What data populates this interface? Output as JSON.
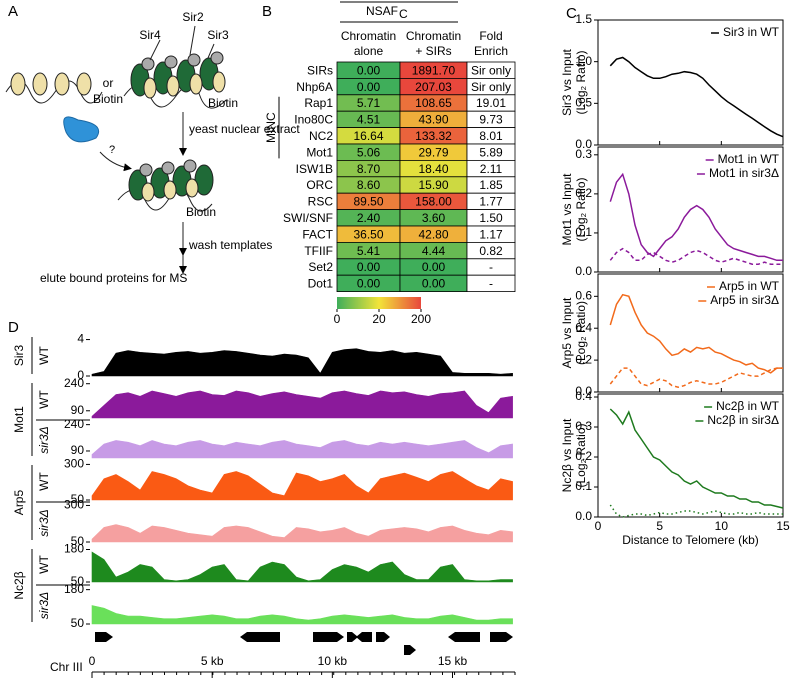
{
  "panel_labels": [
    "A",
    "B",
    "C",
    "D"
  ],
  "diagram": {
    "sir4": "Sir4",
    "sir2": "Sir2",
    "sir3": "Sir3",
    "or": "or",
    "biotin_left": "Biotin",
    "biotin_right": "Biotin",
    "step1": "yeast nuclear extract",
    "question": "?",
    "biotin_bound": "Biotin",
    "step2": "wash templates",
    "step3": "elute bound proteins for MS"
  },
  "table": {
    "header": "NSAF",
    "header_sub": "C",
    "columns": [
      [
        "Chromatin",
        "alone"
      ],
      [
        "Chromatin",
        "+ SIRs"
      ],
      [
        "Fold",
        "Enrich"
      ]
    ],
    "group_label": "MINC",
    "rows": [
      [
        "SIRs",
        "0.00",
        "1891.70",
        "Sir only"
      ],
      [
        "Nhp6A",
        "0.00",
        "207.03",
        "Sir only"
      ],
      [
        "Rap1",
        "5.71",
        "108.65",
        "19.01"
      ],
      [
        "Ino80C",
        "4.51",
        "43.90",
        "9.73"
      ],
      [
        "NC2",
        "16.64",
        "133.32",
        "8.01"
      ],
      [
        "Mot1",
        "5.06",
        "29.79",
        "5.89"
      ],
      [
        "ISW1B",
        "8.70",
        "18.40",
        "2.11"
      ],
      [
        "ORC",
        "8.60",
        "15.90",
        "1.85"
      ],
      [
        "RSC",
        "89.50",
        "158.00",
        "1.77"
      ],
      [
        "SWI/SNF",
        "2.40",
        "3.60",
        "1.50"
      ],
      [
        "FACT",
        "36.50",
        "42.80",
        "1.17"
      ],
      [
        "TFIIF",
        "5.41",
        "4.44",
        "0.82"
      ],
      [
        "Set2",
        "0.00",
        "0.00",
        "-"
      ],
      [
        "Dot1",
        "0.00",
        "0.00",
        "-"
      ]
    ],
    "colorbar": {
      "ticks": [
        0,
        20,
        200
      ],
      "colors": [
        "#3fae5a",
        "#f2e43a",
        "#e8473c"
      ]
    }
  },
  "chart_data": [
    {
      "type": "line",
      "ylabel": [
        "Sir3 vs Input",
        "(Log₂ Ratio)"
      ],
      "x": [
        1,
        1.5,
        2,
        2.5,
        3,
        3.5,
        4,
        4.5,
        5,
        5.5,
        6,
        6.5,
        7,
        7.5,
        8,
        8.5,
        9,
        9.5,
        10,
        10.5,
        11,
        11.5,
        12,
        12.5,
        13,
        13.5,
        14,
        14.5,
        15
      ],
      "xlim": [
        0,
        15
      ],
      "xticks": [
        0,
        5,
        10,
        15
      ],
      "ylim": [
        0,
        1.5
      ],
      "yticks": [
        {
          "value": 0,
          "label": "0.0"
        },
        {
          "value": 0.5,
          "label": "0.5"
        },
        {
          "value": 1,
          "label": "1.0"
        },
        {
          "value": 1.5,
          "label": "1.5"
        }
      ],
      "series": [
        {
          "name": "Sir3 in WT",
          "color": "#000000",
          "dash": "solid",
          "values": [
            0.95,
            1.03,
            1.05,
            1.0,
            0.93,
            0.88,
            0.83,
            0.8,
            0.8,
            0.82,
            0.85,
            0.86,
            0.88,
            0.87,
            0.85,
            0.8,
            0.72,
            0.65,
            0.58,
            0.52,
            0.47,
            0.42,
            0.37,
            0.32,
            0.27,
            0.22,
            0.17,
            0.13,
            0.1
          ]
        }
      ]
    },
    {
      "type": "line",
      "ylabel": [
        "Mot1 vs Input",
        "(Log₂ Ratio)"
      ],
      "x": [
        1,
        1.5,
        2,
        2.5,
        3,
        3.5,
        4,
        4.5,
        5,
        5.5,
        6,
        6.5,
        7,
        7.5,
        8,
        8.5,
        9,
        9.5,
        10,
        10.5,
        11,
        11.5,
        12,
        12.5,
        13,
        13.5,
        14,
        14.5,
        15
      ],
      "xlim": [
        0,
        15
      ],
      "xticks": [
        0,
        5,
        10,
        15
      ],
      "ylim": [
        0,
        0.32
      ],
      "yticks": [
        {
          "value": 0,
          "label": "0.0"
        },
        0.1,
        0.2,
        0.3
      ],
      "series": [
        {
          "name": "Mot1 in WT",
          "color": "#8b1a9b",
          "dash": "solid",
          "values": [
            0.18,
            0.23,
            0.25,
            0.2,
            0.12,
            0.07,
            0.05,
            0.04,
            0.06,
            0.08,
            0.09,
            0.11,
            0.14,
            0.16,
            0.17,
            0.16,
            0.14,
            0.11,
            0.09,
            0.07,
            0.06,
            0.055,
            0.05,
            0.045,
            0.04,
            0.04,
            0.035,
            0.03,
            0.03
          ]
        },
        {
          "name": "Mot1 in sir3Δ",
          "color": "#8b1a9b",
          "dash": "dashed",
          "values": [
            0.03,
            0.05,
            0.06,
            0.05,
            0.03,
            0.03,
            0.045,
            0.05,
            0.04,
            0.03,
            0.025,
            0.03,
            0.04,
            0.05,
            0.055,
            0.05,
            0.04,
            0.03,
            0.025,
            0.03,
            0.035,
            0.03,
            0.025,
            0.02,
            0.02,
            0.025,
            0.02,
            0.02,
            0.02
          ]
        }
      ]
    },
    {
      "type": "line",
      "ylabel": [
        "Arp5 vs Input",
        "(Log₂ Ratio)"
      ],
      "x": [
        1,
        1.5,
        2,
        2.5,
        3,
        3.5,
        4,
        4.5,
        5,
        5.5,
        6,
        6.5,
        7,
        7.5,
        8,
        8.5,
        9,
        9.5,
        10,
        10.5,
        11,
        11.5,
        12,
        12.5,
        13,
        13.5,
        14,
        14.5,
        15
      ],
      "xlim": [
        0,
        15
      ],
      "xticks": [
        0,
        5,
        10,
        15
      ],
      "ylim": [
        0,
        0.74
      ],
      "yticks": [
        {
          "value": 0,
          "label": "0.0"
        },
        0.2,
        0.4,
        0.6
      ],
      "series": [
        {
          "name": "Arp5 in WT",
          "color": "#f26a1b",
          "dash": "solid",
          "values": [
            0.42,
            0.55,
            0.61,
            0.6,
            0.5,
            0.42,
            0.37,
            0.35,
            0.32,
            0.27,
            0.23,
            0.24,
            0.27,
            0.25,
            0.28,
            0.27,
            0.28,
            0.25,
            0.24,
            0.22,
            0.2,
            0.19,
            0.17,
            0.18,
            0.15,
            0.14,
            0.12,
            0.15,
            0.15
          ]
        },
        {
          "name": "Arp5 in sir3Δ",
          "color": "#f26a1b",
          "dash": "dashed",
          "values": [
            0.05,
            0.1,
            0.15,
            0.15,
            0.1,
            0.05,
            0.04,
            0.06,
            0.08,
            0.07,
            0.04,
            0.03,
            0.04,
            0.06,
            0.07,
            0.06,
            0.05,
            0.05,
            0.06,
            0.08,
            0.1,
            0.12,
            0.11,
            0.1,
            0.1,
            0.12,
            0.14,
            0.15,
            0.15
          ]
        }
      ]
    },
    {
      "type": "line",
      "ylabel": [
        "Nc2β vs Input",
        "(Log₂ Ratio)"
      ],
      "xlabel": "Distance to Telomere (kb)",
      "x": [
        1,
        1.5,
        2,
        2.5,
        3,
        3.5,
        4,
        4.5,
        5,
        5.5,
        6,
        6.5,
        7,
        7.5,
        8,
        8.5,
        9,
        9.5,
        10,
        10.5,
        11,
        11.5,
        12,
        12.5,
        13,
        13.5,
        14,
        14.5,
        15
      ],
      "xlim": [
        0,
        15
      ],
      "xticks": [
        0,
        5,
        10,
        15
      ],
      "ylim": [
        0,
        0.41
      ],
      "yticks": [
        {
          "value": 0,
          "label": "0.0"
        },
        0.1,
        0.2,
        0.3,
        0.4
      ],
      "series": [
        {
          "name": "Nc2β in WT",
          "color": "#1e7a1e",
          "dash": "solid",
          "values": [
            0.36,
            0.34,
            0.31,
            0.35,
            0.29,
            0.26,
            0.23,
            0.2,
            0.19,
            0.17,
            0.15,
            0.14,
            0.12,
            0.11,
            0.12,
            0.1,
            0.09,
            0.08,
            0.08,
            0.07,
            0.07,
            0.06,
            0.06,
            0.05,
            0.05,
            0.04,
            0.04,
            0.035,
            0.03
          ]
        },
        {
          "name": "Nc2β in sir3Δ",
          "color": "#1e7a1e",
          "dash": "dotted",
          "values": [
            0.04,
            0.01,
            0.0,
            0.005,
            0.01,
            0.01,
            0.005,
            0.01,
            0.015,
            0.01,
            0.01,
            0.015,
            0.02,
            0.02,
            0.015,
            0.01,
            0.015,
            0.02,
            0.015,
            0.01,
            0.01,
            0.015,
            0.01,
            0.01,
            0.015,
            0.01,
            0.01,
            0.01,
            0.01
          ]
        }
      ]
    },
    {
      "type": "track",
      "xlabel": "Chr III",
      "x": [
        0,
        0.5,
        1,
        1.5,
        2,
        2.5,
        3,
        3.5,
        4,
        4.5,
        5,
        5.5,
        6,
        6.5,
        7,
        7.5,
        8,
        8.5,
        9,
        9.5,
        10,
        10.5,
        11,
        11.5,
        12,
        12.5,
        13,
        13.5,
        14,
        14.5,
        15,
        15.5,
        16,
        16.5,
        17,
        17.5
      ],
      "xlim": [
        0,
        17.6
      ],
      "xticks": [
        0,
        {
          "value": 5,
          "label": "5 kb"
        },
        {
          "value": 10,
          "label": "10 kb"
        },
        {
          "value": 15,
          "label": "15 kb"
        }
      ],
      "groups": [
        {
          "label": "Sir3",
          "color": "#000000",
          "tracks": [
            {
              "genotype": "WT",
              "color": "#000000",
              "ylim": [
                0,
                4.5
              ],
              "yticks": [
                0,
                4
              ],
              "values": [
                0.2,
                0.5,
                2.5,
                2.8,
                2.6,
                2.5,
                2.4,
                2.6,
                2.7,
                2.5,
                2.6,
                2.8,
                2.7,
                2.5,
                2.3,
                2.2,
                2.4,
                2.3,
                2.0,
                0.3,
                2.6,
                2.9,
                3.0,
                2.7,
                2.6,
                2.8,
                2.5,
                2.6,
                2.4,
                2.2,
                0.4,
                0.3,
                0.3,
                0.3,
                0.2,
                0.3
              ]
            }
          ]
        },
        {
          "label": "Mot1",
          "color": "#8b1a9b",
          "tracks": [
            {
              "genotype": "WT",
              "color": "#8b1a9b",
              "ylim": [
                50,
                255
              ],
              "yticks": [
                90,
                240
              ],
              "values": [
                60,
                120,
                180,
                190,
                170,
                200,
                185,
                170,
                190,
                200,
                180,
                175,
                200,
                190,
                170,
                185,
                195,
                180,
                170,
                160,
                190,
                200,
                185,
                175,
                200,
                190,
                195,
                180,
                170,
                185,
                190,
                200,
                120,
                80,
                160,
                170
              ]
            },
            {
              "genotype": "sir3Δ",
              "color": "#c79be6",
              "ylim": [
                50,
                255
              ],
              "yticks": [
                90,
                240
              ],
              "values": [
                70,
                130,
                150,
                140,
                120,
                150,
                130,
                120,
                140,
                150,
                130,
                120,
                140,
                130,
                120,
                140,
                150,
                130,
                120,
                110,
                140,
                150,
                130,
                120,
                140,
                130,
                140,
                130,
                120,
                130,
                140,
                150,
                110,
                80,
                120,
                130
              ]
            }
          ]
        },
        {
          "label": "Arp5",
          "color": "#f26a1b",
          "tracks": [
            {
              "genotype": "WT",
              "color": "#fa5a14",
              "ylim": [
                50,
                310
              ],
              "yticks": [
                50,
                300
              ],
              "values": [
                80,
                200,
                230,
                180,
                120,
                250,
                230,
                200,
                150,
                120,
                100,
                230,
                250,
                220,
                160,
                100,
                80,
                240,
                220,
                180,
                200,
                230,
                150,
                100,
                200,
                220,
                240,
                210,
                180,
                230,
                250,
                200,
                150,
                120,
                200,
                180
              ]
            },
            {
              "genotype": "sir3Δ",
              "color": "#f5a0a0",
              "ylim": [
                50,
                310
              ],
              "yticks": [
                50,
                300
              ],
              "values": [
                70,
                150,
                170,
                150,
                110,
                160,
                150,
                130,
                110,
                100,
                90,
                150,
                160,
                150,
                120,
                90,
                80,
                150,
                140,
                120,
                130,
                150,
                110,
                90,
                130,
                140,
                150,
                140,
                120,
                150,
                160,
                130,
                110,
                100,
                130,
                120
              ]
            }
          ]
        },
        {
          "label": "Nc2β",
          "color": "#1e8a1e",
          "tracks": [
            {
              "genotype": "WT",
              "color": "#1e8a1e",
              "ylim": [
                50,
                190
              ],
              "yticks": [
                50,
                180
              ],
              "values": [
                170,
                140,
                70,
                90,
                120,
                110,
                60,
                55,
                60,
                80,
                110,
                120,
                60,
                55,
                110,
                130,
                120,
                70,
                55,
                60,
                100,
                120,
                110,
                90,
                120,
                130,
                80,
                60,
                60,
                110,
                120,
                60,
                55,
                55,
                60,
                60
              ]
            },
            {
              "genotype": "sir3Δ",
              "color": "#6ae05a",
              "ylim": [
                50,
                190
              ],
              "yticks": [
                50,
                180
              ],
              "values": [
                120,
                110,
                90,
                80,
                80,
                75,
                70,
                70,
                75,
                80,
                85,
                80,
                70,
                70,
                80,
                85,
                80,
                70,
                65,
                70,
                80,
                85,
                80,
                75,
                80,
                85,
                75,
                70,
                70,
                80,
                85,
                75,
                65,
                65,
                70,
                70
              ]
            }
          ]
        }
      ]
    }
  ]
}
